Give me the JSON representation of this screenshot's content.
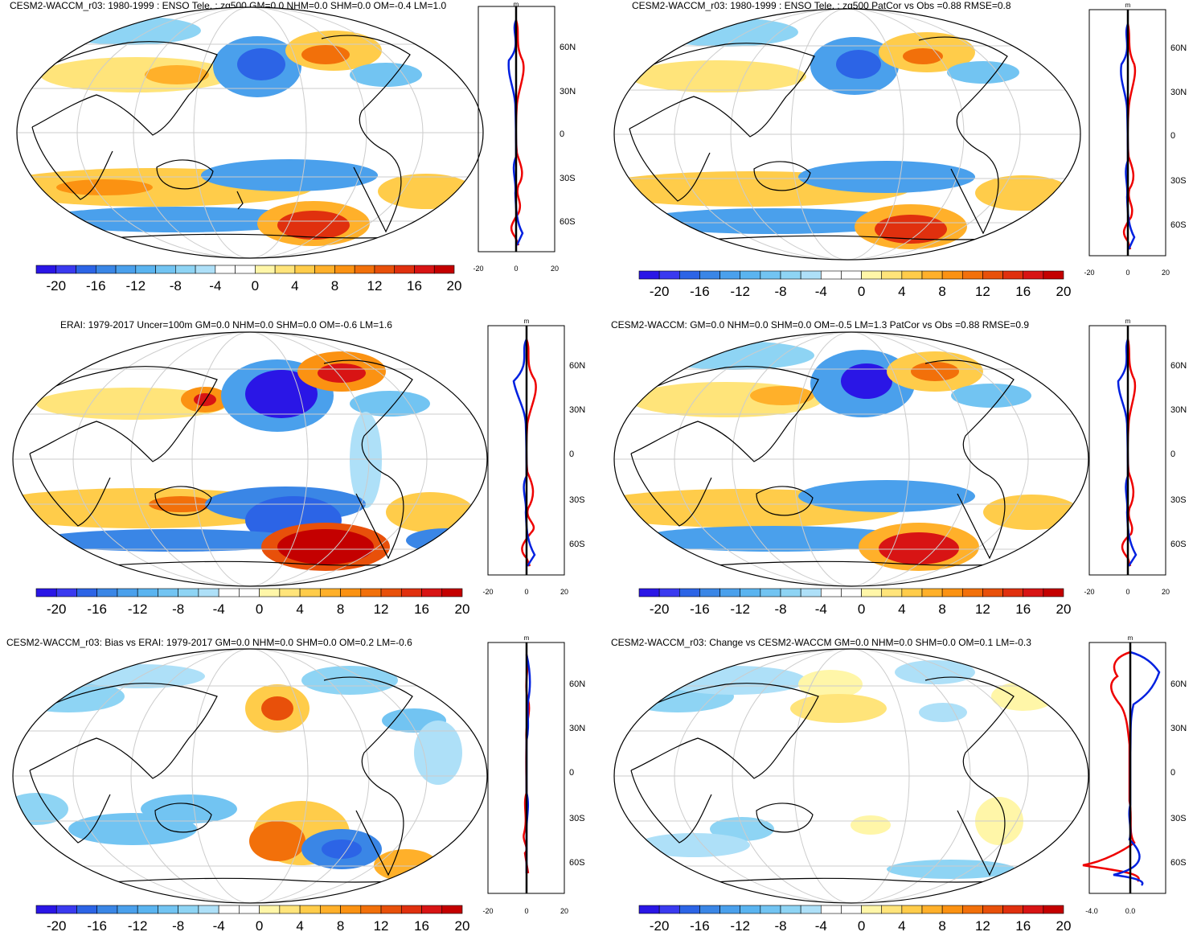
{
  "colorbar": {
    "labels": [
      "-20",
      "-16",
      "-12",
      "-8",
      "-4",
      "0",
      "4",
      "8",
      "12",
      "16",
      "20"
    ],
    "colors": [
      "#2a16e6",
      "#3a3af0",
      "#2c64e6",
      "#3a86e6",
      "#4aa0ec",
      "#5ab4f0",
      "#72c4f2",
      "#8ed4f4",
      "#aee0f8",
      "#ffffff",
      "#ffffff",
      "#fff6a8",
      "#ffe47a",
      "#ffcc4a",
      "#ffb02a",
      "#fb9212",
      "#f2700a",
      "#e8500a",
      "#e0300e",
      "#d81414",
      "#c40000"
    ]
  },
  "lat_labels": [
    "60N",
    "30N",
    "0",
    "30S",
    "60S"
  ],
  "unit": "m",
  "panels": [
    {
      "title": "CESM2-WACCM_r03: 1980-1999 : ENSO Tele. : zg500 GM=0.0 NHM=0.0 SHM=0.0 OM=-0.4 LM=1.0",
      "zonal_xticks": [
        "-20",
        "0",
        "20"
      ]
    },
    {
      "title": "CESM2-WACCM_r03: 1980-1999 : ENSO Tele. : zg500 PatCor vs Obs =0.88 RMSE=0.8",
      "zonal_xticks": [
        "-20",
        "0",
        "20"
      ]
    },
    {
      "title": "ERAI: 1979-2017 Uncer=100m GM=0.0 NHM=0.0 SHM=0.0 OM=-0.6 LM=1.6",
      "zonal_xticks": [
        "-20",
        "0",
        "20"
      ]
    },
    {
      "title": "CESM2-WACCM: GM=0.0 NHM=0.0 SHM=0.0 OM=-0.5 LM=1.3 PatCor vs Obs =0.88 RMSE=0.9",
      "zonal_xticks": [
        "-20",
        "0",
        "20"
      ]
    },
    {
      "title": "CESM2-WACCM_r03: Bias vs ERAI: 1979-2017 GM=0.0 NHM=0.0 SHM=0.0 OM=0.2 LM=-0.6",
      "zonal_xticks": [
        "-20",
        "0",
        "20"
      ]
    },
    {
      "title": "CESM2-WACCM_r03: Change vs CESM2-WACCM GM=0.0 NHM=0.0 SHM=0.0 OM=0.1 LM=-0.3",
      "zonal_xticks": [
        "-4.0",
        "0.0"
      ]
    }
  ]
}
